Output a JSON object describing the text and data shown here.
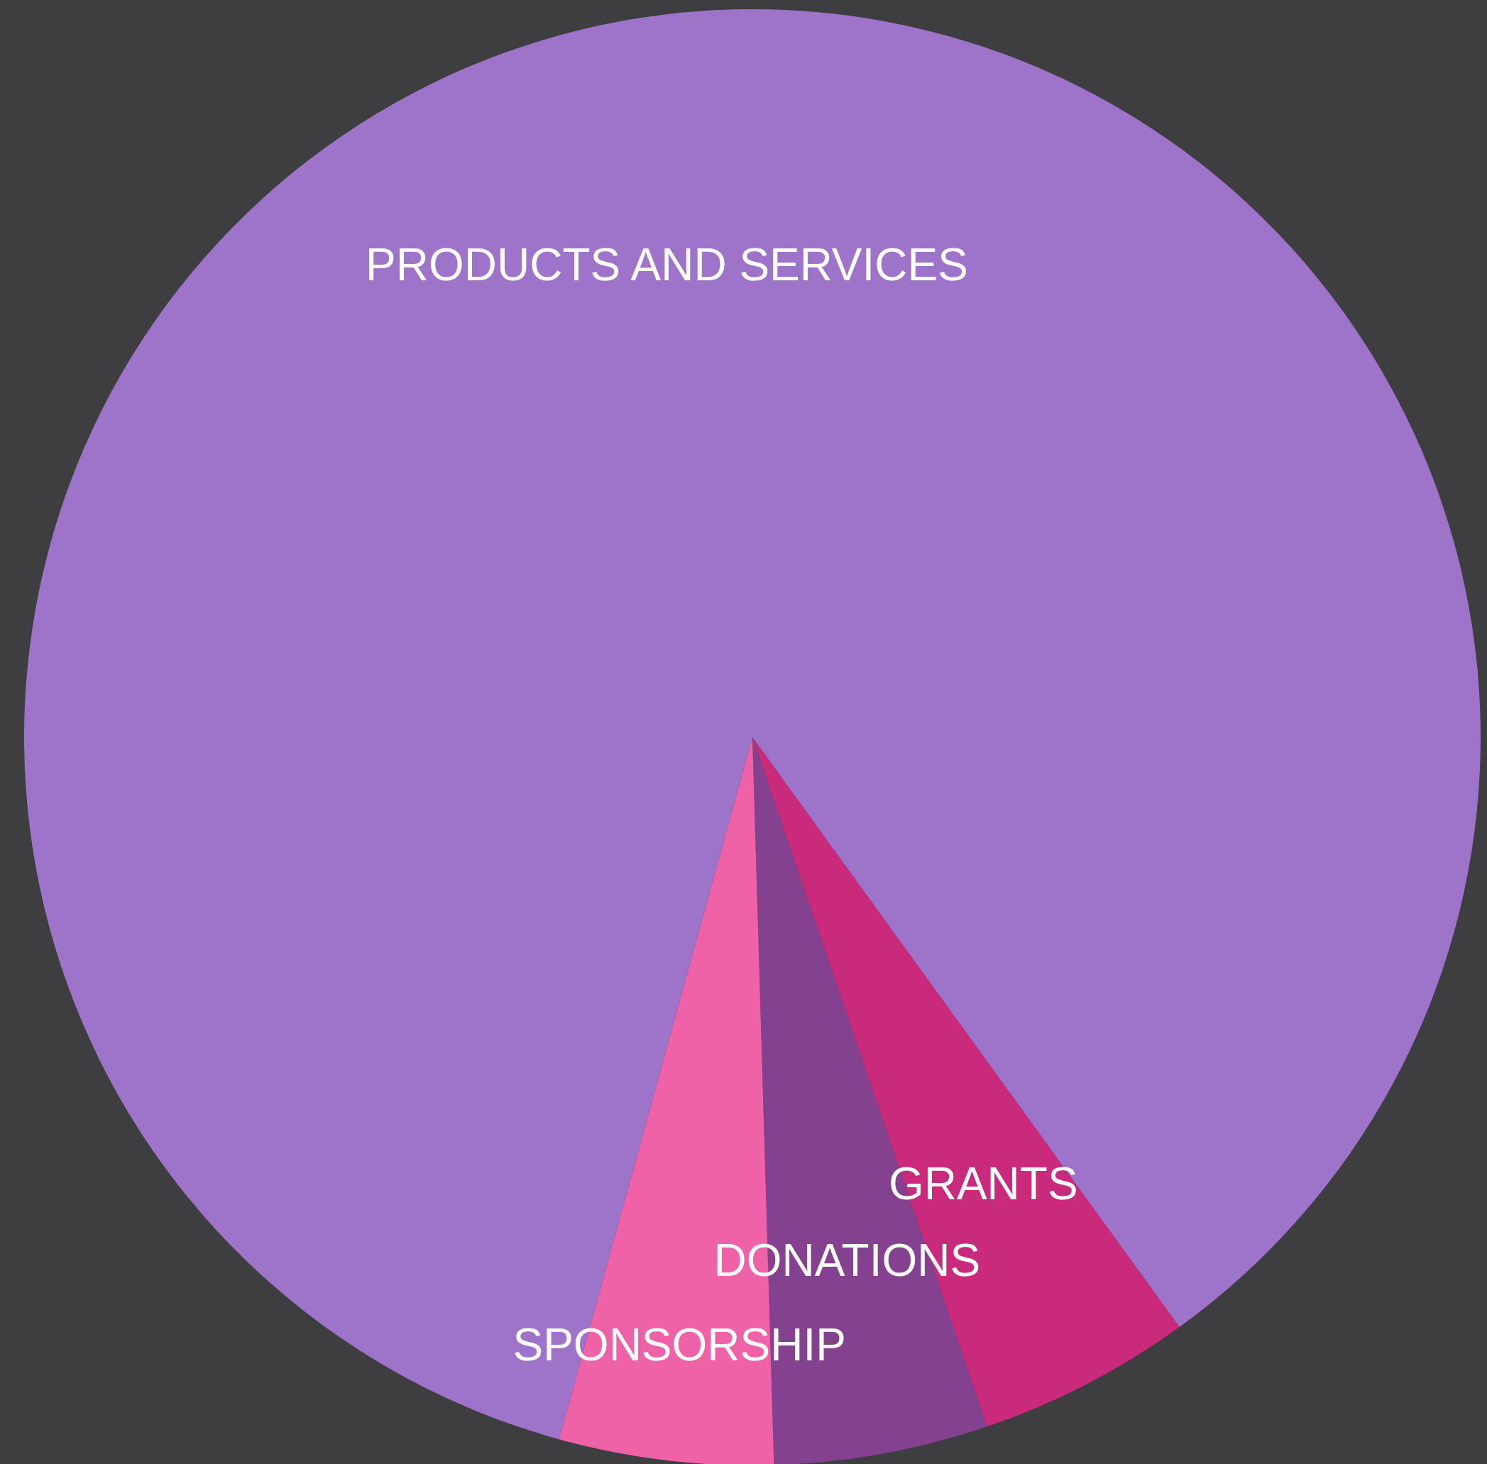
{
  "chart_data": {
    "type": "pie",
    "categories": [
      "PRODUCTS AND SERVICES",
      "GRANTS",
      "DONATIONS",
      "SPONSORSHIP"
    ],
    "values": [
      85.75,
      4.75,
      4.75,
      4.75
    ],
    "colors": [
      "#9d74c9",
      "#c92a7b",
      "#84418f",
      "#ef62a8"
    ]
  }
}
